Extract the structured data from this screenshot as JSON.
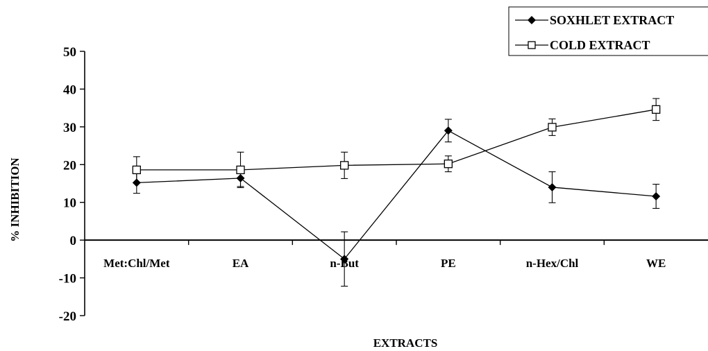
{
  "chart_data": {
    "type": "line",
    "title": "",
    "xlabel": "EXTRACTS",
    "ylabel": "% INHIBITION",
    "ylim": [
      -20,
      50
    ],
    "yticks": [
      -20,
      -10,
      0,
      10,
      20,
      30,
      40,
      50
    ],
    "yticks_text": [
      "-20",
      "-10",
      "0",
      "10",
      "20",
      "30",
      "40",
      "50"
    ],
    "categories": [
      "Met:Chl/Met",
      "EA",
      "n-But",
      "PE",
      "n-Hex/Chl",
      "WE"
    ],
    "grid": false,
    "legend_position": "top-right",
    "series": [
      {
        "name": "SOXHLET EXTRACT",
        "marker": "filled-diamond",
        "color": "#000000",
        "values": [
          15.2,
          16.4,
          -5.0,
          29.0,
          14.0,
          11.6
        ],
        "error": [
          2.8,
          2.2,
          7.2,
          3.0,
          4.1,
          3.2
        ]
      },
      {
        "name": "COLD EXTRACT",
        "marker": "open-square",
        "color": "#000000",
        "values": [
          18.6,
          18.6,
          19.8,
          20.2,
          29.9,
          34.6
        ],
        "error": [
          3.5,
          4.7,
          3.5,
          2.1,
          2.2,
          2.9
        ]
      }
    ]
  }
}
